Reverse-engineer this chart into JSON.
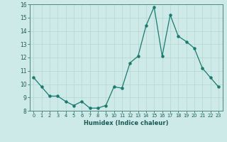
{
  "x": [
    0,
    1,
    2,
    3,
    4,
    5,
    6,
    7,
    8,
    9,
    10,
    11,
    12,
    13,
    14,
    15,
    16,
    17,
    18,
    19,
    20,
    21,
    22,
    23
  ],
  "y": [
    10.5,
    9.8,
    9.1,
    9.1,
    8.7,
    8.4,
    8.7,
    8.2,
    8.2,
    8.4,
    9.8,
    9.7,
    11.6,
    12.1,
    14.4,
    15.8,
    12.1,
    15.2,
    13.6,
    13.2,
    12.7,
    11.2,
    10.5,
    9.8
  ],
  "line_color": "#1a7a6e",
  "bg_color": "#ceeae8",
  "grid_color": "#b8d8d5",
  "xlabel": "Humidex (Indice chaleur)",
  "xlim": [
    -0.5,
    23.5
  ],
  "ylim": [
    8.0,
    16.0
  ],
  "yticks": [
    8,
    9,
    10,
    11,
    12,
    13,
    14,
    15,
    16
  ],
  "xtick_labels": [
    "0",
    "1",
    "2",
    "3",
    "4",
    "5",
    "6",
    "7",
    "8",
    "9",
    "10",
    "11",
    "12",
    "13",
    "14",
    "15",
    "16",
    "17",
    "18",
    "19",
    "20",
    "21",
    "22",
    "23"
  ],
  "marker": "o",
  "markersize": 2.2,
  "linewidth": 0.9
}
